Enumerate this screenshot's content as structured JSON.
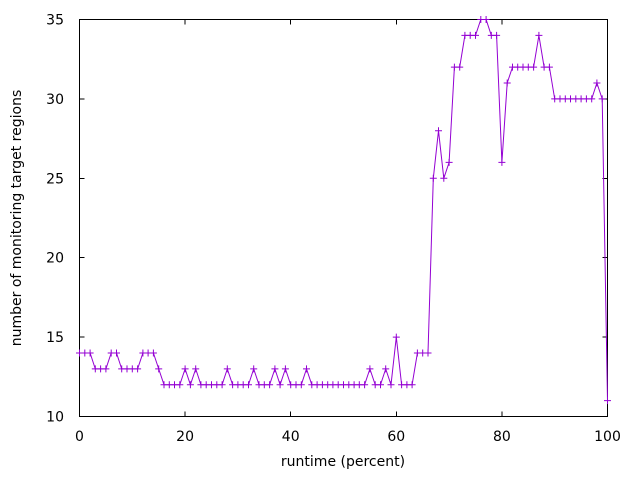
{
  "chart_data": {
    "type": "line",
    "title": "",
    "xlabel": "runtime (percent)",
    "ylabel": "number of monitoring target regions",
    "xlim": [
      0,
      100
    ],
    "ylim": [
      10,
      35
    ],
    "xticks": [
      0,
      20,
      40,
      60,
      80,
      100
    ],
    "yticks": [
      10,
      15,
      20,
      25,
      30,
      35
    ],
    "grid": false,
    "legend": "none",
    "tick_style": "inward-mirrored",
    "series": [
      {
        "marker": "plus",
        "color": "#9400d3",
        "x_start": 0,
        "x_step": 1,
        "values": [
          14,
          14,
          14,
          13,
          13,
          13,
          14,
          14,
          13,
          13,
          13,
          13,
          14,
          14,
          14,
          13,
          12,
          12,
          12,
          12,
          13,
          12,
          13,
          12,
          12,
          12,
          12,
          12,
          13,
          12,
          12,
          12,
          12,
          13,
          12,
          12,
          12,
          13,
          12,
          13,
          12,
          12,
          12,
          13,
          12,
          12,
          12,
          12,
          12,
          12,
          12,
          12,
          12,
          12,
          12,
          13,
          12,
          12,
          13,
          12,
          15,
          12,
          12,
          12,
          14,
          14,
          14,
          25,
          28,
          25,
          26,
          32,
          32,
          34,
          34,
          34,
          35,
          35,
          34,
          34,
          26,
          31,
          32,
          32,
          32,
          32,
          32,
          34,
          32,
          32,
          30,
          30,
          30,
          30,
          30,
          30,
          30,
          30,
          31,
          30,
          11
        ]
      }
    ]
  },
  "colors": {
    "background": "#ffffff",
    "axis": "#000000",
    "text": "#000000",
    "series": "#9400d3"
  }
}
